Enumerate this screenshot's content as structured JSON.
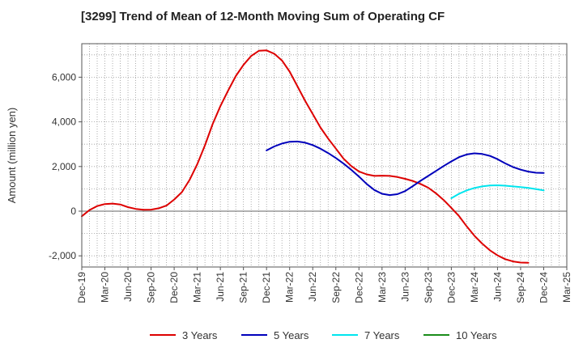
{
  "chart_data": {
    "type": "line",
    "title": "[3299]  Trend of Mean of 12-Month Moving Sum of Operating CF",
    "xlabel": "",
    "ylabel": "Amount (million yen)",
    "ylim": [
      -2500,
      7500
    ],
    "yticks": [
      -2000,
      0,
      2000,
      4000,
      6000
    ],
    "ytick_labels": [
      "-2,000",
      "0",
      "2,000",
      "4,000",
      "6,000"
    ],
    "grid": true,
    "legend_position": "bottom",
    "x_tick_labels": [
      "Dec-19",
      "Mar-20",
      "Jun-20",
      "Sep-20",
      "Dec-20",
      "Mar-21",
      "Jun-21",
      "Sep-21",
      "Dec-21",
      "Mar-22",
      "Jun-22",
      "Sep-22",
      "Dec-22",
      "Mar-23",
      "Jun-23",
      "Sep-23",
      "Dec-23",
      "Mar-24",
      "Jun-24",
      "Sep-24",
      "Dec-24",
      "Mar-25"
    ],
    "x_start": "Dec-19",
    "x_unit": "months since Dec-19",
    "series": [
      {
        "name": "3 Years",
        "color": "#dd0000",
        "x": [
          0,
          1,
          2,
          3,
          4,
          5,
          6,
          7,
          8,
          9,
          10,
          11,
          12,
          13,
          14,
          15,
          16,
          17,
          18,
          19,
          20,
          21,
          22,
          23,
          24,
          25,
          26,
          27,
          28,
          29,
          30,
          31,
          32,
          33,
          34,
          35,
          36,
          37,
          38,
          39,
          40,
          41,
          42,
          43,
          44,
          45,
          46,
          47,
          48,
          49,
          50,
          51,
          52,
          53,
          54,
          55,
          56,
          57,
          58,
          59,
          60
        ],
        "values": [
          -230,
          50,
          230,
          320,
          340,
          300,
          180,
          100,
          60,
          70,
          130,
          250,
          520,
          850,
          1400,
          2100,
          2950,
          3900,
          4700,
          5400,
          6050,
          6550,
          6950,
          7180,
          7200,
          7050,
          6750,
          6250,
          5600,
          4950,
          4350,
          3750,
          3250,
          2800,
          2350,
          2020,
          1780,
          1650,
          1580,
          1590,
          1580,
          1530,
          1450,
          1350,
          1220,
          1050,
          800,
          500,
          150,
          -220,
          -680,
          -1100,
          -1450,
          -1750,
          -1980,
          -2150,
          -2250,
          -2300,
          -2310,
          null,
          null
        ]
      },
      {
        "name": "5 Years",
        "color": "#0000bb",
        "x": [
          24,
          25,
          26,
          27,
          28,
          29,
          30,
          31,
          32,
          33,
          34,
          35,
          36,
          37,
          38,
          39,
          40,
          41,
          42,
          43,
          44,
          45,
          46,
          47,
          48,
          49,
          50,
          51,
          52,
          53,
          54,
          55,
          56,
          57,
          58,
          59,
          60
        ],
        "values": [
          2720,
          2900,
          3030,
          3110,
          3120,
          3070,
          2960,
          2800,
          2600,
          2380,
          2130,
          1850,
          1550,
          1220,
          950,
          780,
          720,
          760,
          900,
          1120,
          1360,
          1580,
          1800,
          2020,
          2230,
          2420,
          2540,
          2590,
          2560,
          2480,
          2330,
          2140,
          1980,
          1860,
          1770,
          1720,
          1710
        ]
      },
      {
        "name": "7 Years",
        "color": "#00e5ee",
        "x": [
          48,
          49,
          50,
          51,
          52,
          53,
          54,
          55,
          56,
          57,
          58,
          59,
          60
        ],
        "values": [
          580,
          780,
          930,
          1040,
          1110,
          1150,
          1160,
          1140,
          1110,
          1080,
          1040,
          990,
          930
        ]
      },
      {
        "name": "10 Years",
        "color": "#1a8c1a",
        "x": [],
        "values": []
      }
    ]
  }
}
